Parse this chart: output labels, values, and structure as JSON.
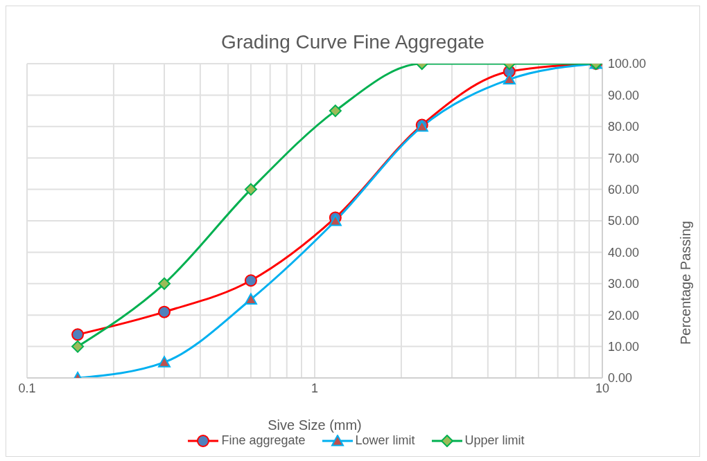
{
  "chart_data": {
    "type": "line",
    "title": "Grading Curve Fine Aggregate",
    "xlabel": "Sive Size (mm)",
    "ylabel": "Percentage Passing",
    "log": "x",
    "x": [
      0.15,
      0.3,
      0.6,
      1.18,
      2.36,
      4.75,
      9.5
    ],
    "series": [
      {
        "name": "Fine aggregate",
        "color": "#ff0000",
        "marker": "circle",
        "values": [
          13.8,
          21,
          31,
          51,
          80.5,
          97.5,
          100
        ]
      },
      {
        "name": "Lower limit",
        "color": "#00b0f0",
        "marker": "triangle",
        "values": [
          0,
          5,
          25,
          50,
          80,
          95,
          100
        ]
      },
      {
        "name": "Upper limit",
        "color": "#00b050",
        "marker": "diamond",
        "values": [
          10,
          30,
          60,
          85,
          100,
          100,
          100
        ]
      }
    ],
    "xlim": [
      0.1,
      10
    ],
    "xticks": [
      0.1,
      {
        "value": 0.2,
        "label": null
      },
      {
        "value": 0.3,
        "label": null
      },
      {
        "value": 0.4,
        "label": null
      },
      {
        "value": 0.5,
        "label": null
      },
      {
        "value": 0.6,
        "label": null
      },
      {
        "value": 0.7,
        "label": null
      },
      {
        "value": 0.8,
        "label": null
      },
      {
        "value": 0.9,
        "label": null
      },
      1,
      {
        "value": 2,
        "label": null
      },
      {
        "value": 3,
        "label": null
      },
      {
        "value": 4,
        "label": null
      },
      {
        "value": 5,
        "label": null
      },
      {
        "value": 6,
        "label": null
      },
      {
        "value": 7,
        "label": null
      },
      {
        "value": 8,
        "label": null
      },
      {
        "value": 9,
        "label": null
      },
      10
    ],
    "ylim": [
      0,
      100
    ],
    "yticks": [
      {
        "value": 0,
        "label": "0.00"
      },
      {
        "value": 10,
        "label": "10.00"
      },
      {
        "value": 20,
        "label": "20.00"
      },
      {
        "value": 30,
        "label": "30.00"
      },
      {
        "value": 40,
        "label": "40.00"
      },
      {
        "value": 50,
        "label": "50.00"
      },
      {
        "value": 60,
        "label": "60.00"
      },
      {
        "value": 70,
        "label": "70.00"
      },
      {
        "value": 80,
        "label": "80.00"
      },
      {
        "value": 90,
        "label": "90.00"
      },
      {
        "value": 100,
        "label": "100.00"
      }
    ],
    "grid": true,
    "legend": "bottom",
    "line_style": "solid"
  }
}
